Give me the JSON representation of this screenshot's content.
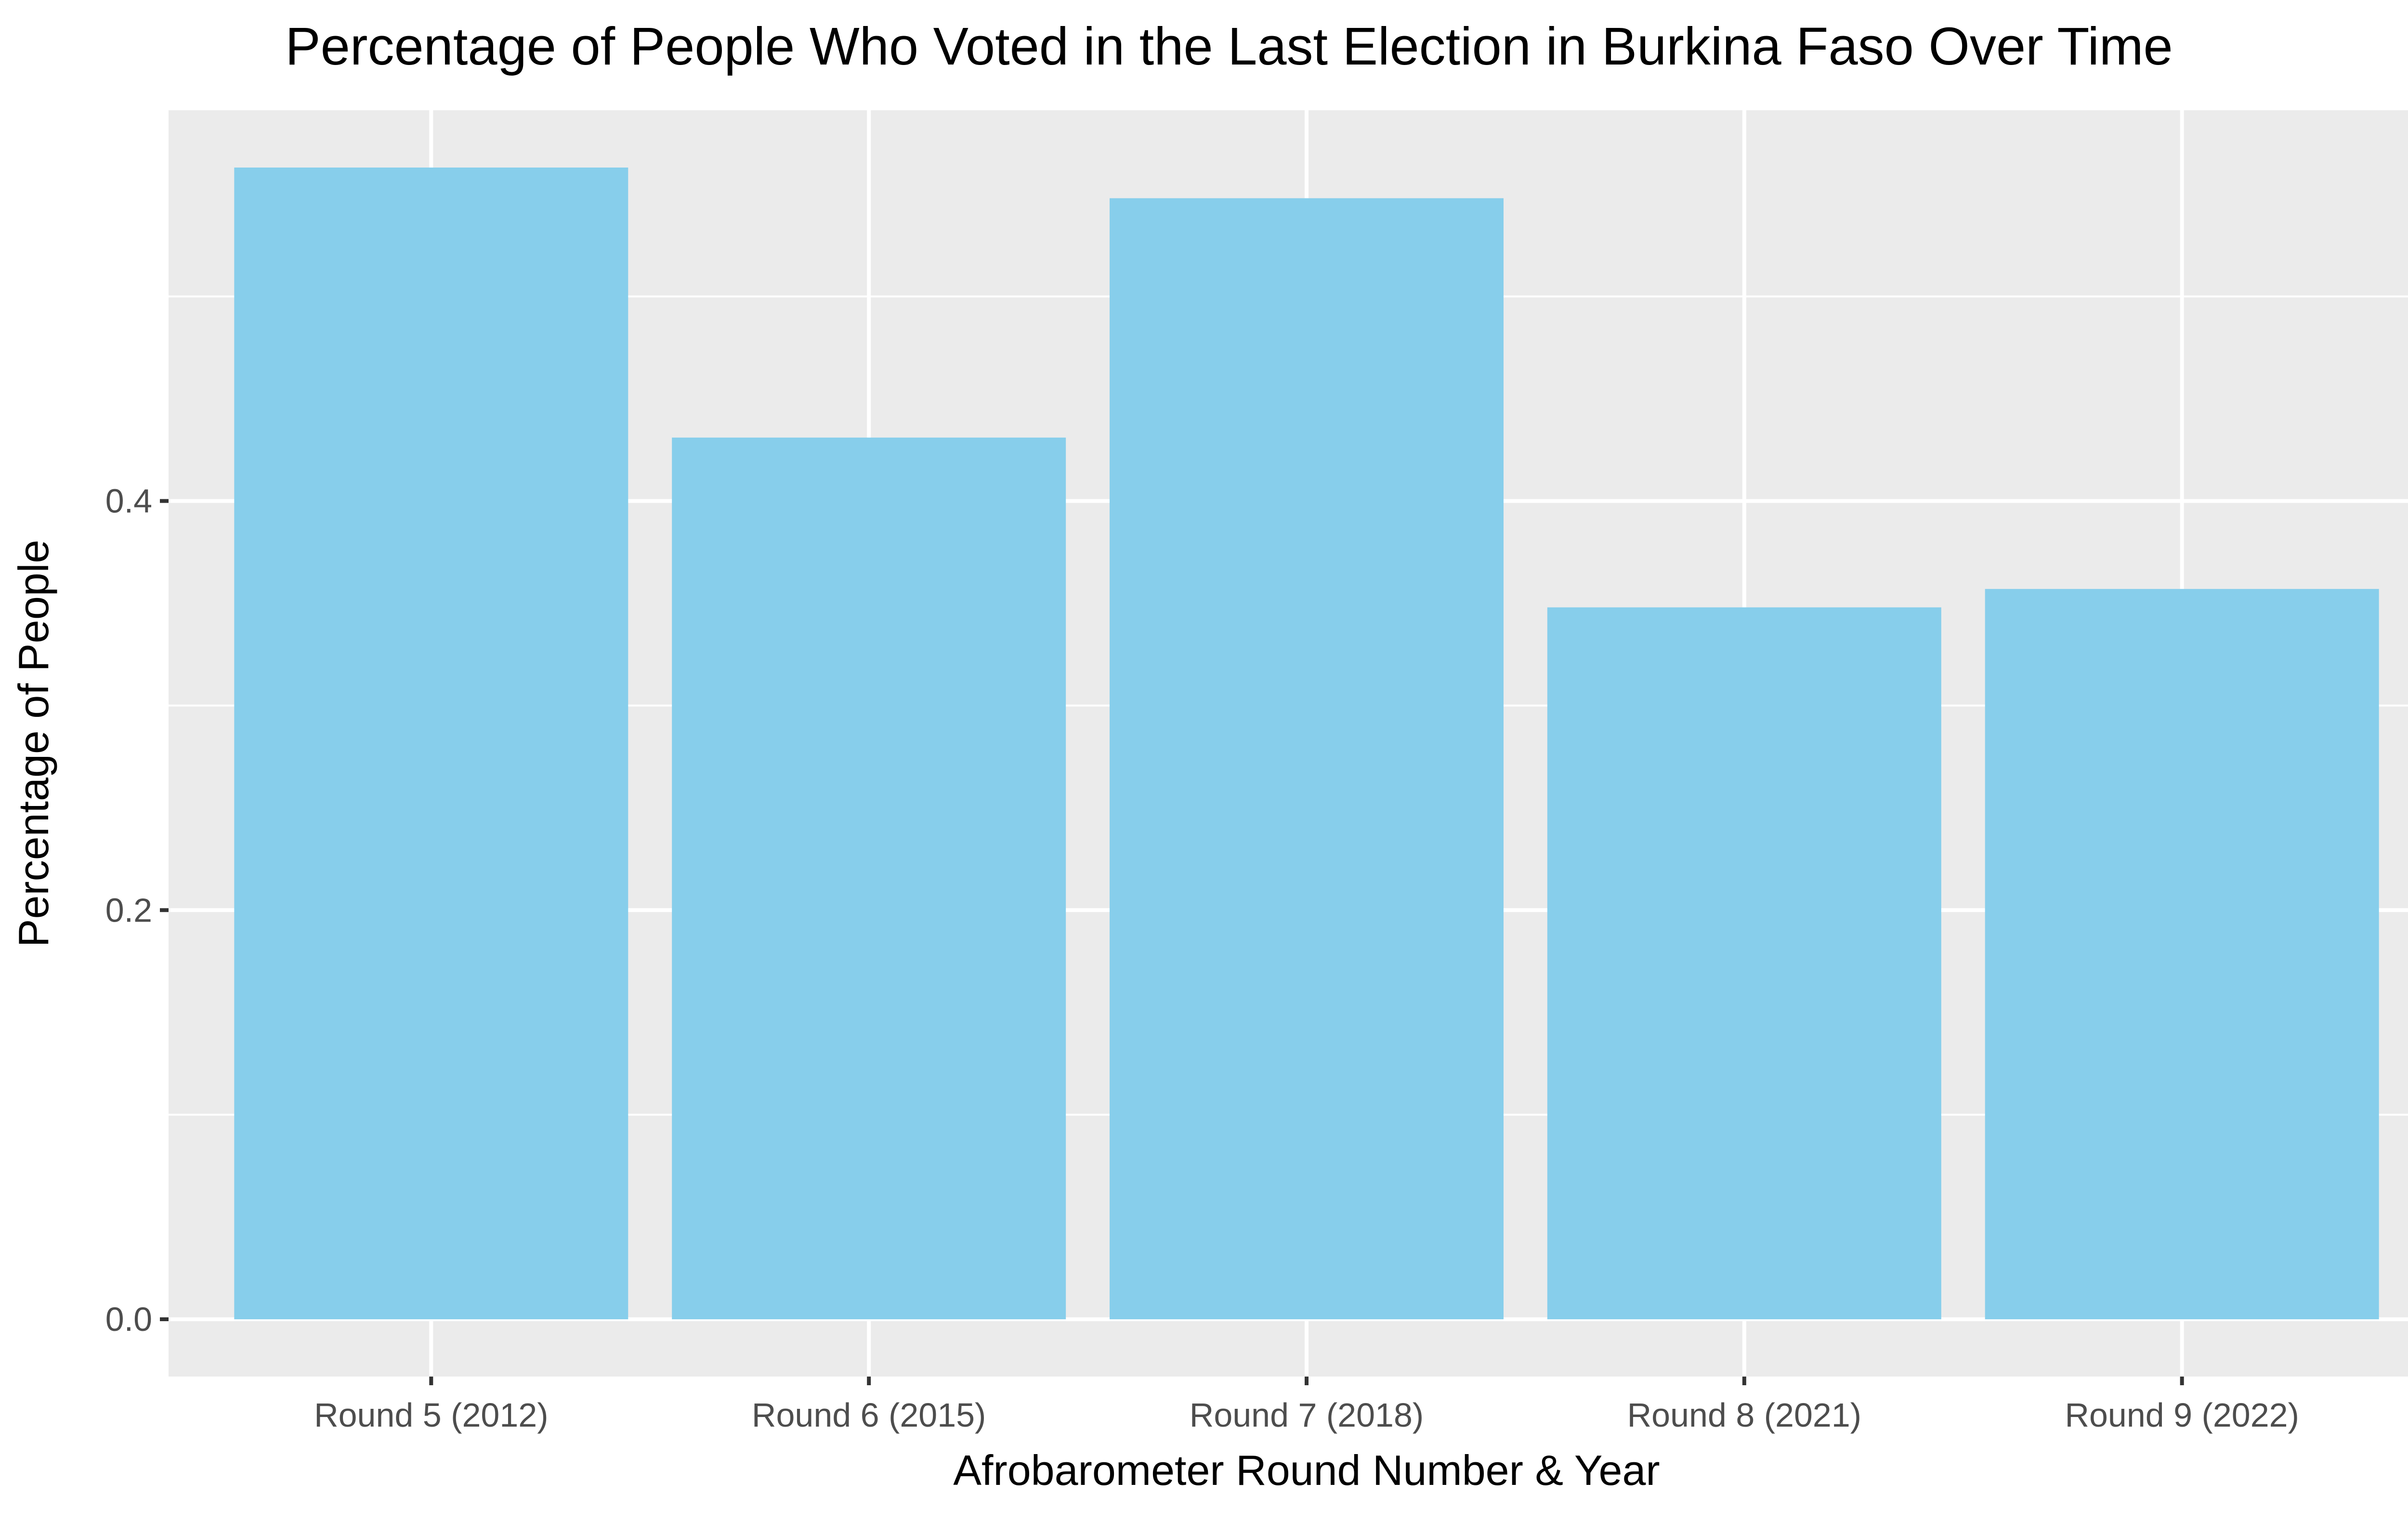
{
  "chart_data": {
    "type": "bar",
    "title": "Percentage of People Who Voted in the Last Election in Burkina Faso Over Time",
    "xlabel": "Afrobarometer Round Number & Year",
    "ylabel": "Percentage of People",
    "categories": [
      "Round 5 (2012)",
      "Round 6 (2015)",
      "Round 7 (2018)",
      "Round 8 (2021)",
      "Round 9 (2022)"
    ],
    "values": [
      0.563,
      0.431,
      0.548,
      0.348,
      0.357
    ],
    "yticks": [
      0.0,
      0.2,
      0.4
    ],
    "ytick_labels": [
      "0.0",
      "0.2",
      "0.4"
    ],
    "ylim": [
      -0.028,
      0.591
    ],
    "grid": true,
    "legend": "none",
    "colors": {
      "bar": "#87CEEB",
      "panel": "#EBEBEB",
      "grid": "#FFFFFF",
      "text": "#000000",
      "tick_text": "#4D4D4D",
      "tick_mark": "#333333"
    }
  }
}
